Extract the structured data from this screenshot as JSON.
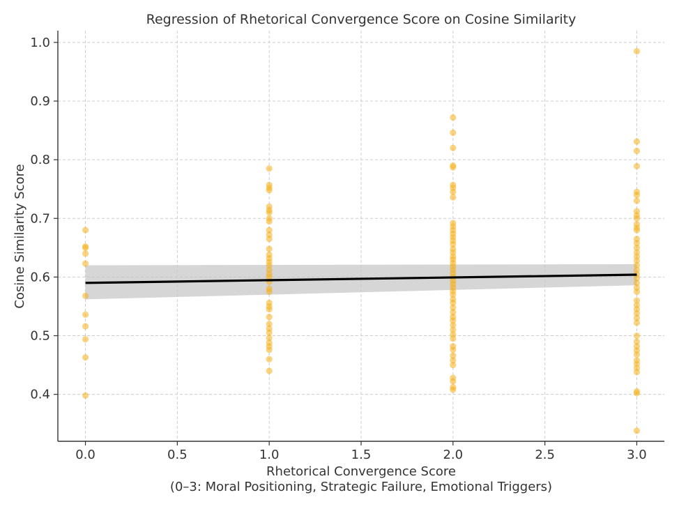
{
  "chart_data": {
    "type": "scatter",
    "title": "Regression of Rhetorical Convergence Score on Cosine Similarity",
    "xlabel": "Rhetorical Convergence Score",
    "xlabel_sub": "(0–3: Moral Positioning, Strategic Failure, Emotional Triggers)",
    "ylabel": "Cosine Similarity Score",
    "xlim": [
      -0.15,
      3.15
    ],
    "ylim": [
      0.32,
      1.02
    ],
    "x_ticks": [
      0.0,
      0.5,
      1.0,
      1.5,
      2.0,
      2.5,
      3.0
    ],
    "x_tick_labels": [
      "0.0",
      "0.5",
      "1.0",
      "1.5",
      "2.0",
      "2.5",
      "3.0"
    ],
    "y_ticks": [
      0.4,
      0.5,
      0.6,
      0.7,
      0.8,
      0.9,
      1.0
    ],
    "y_tick_labels": [
      "0.4",
      "0.5",
      "0.6",
      "0.7",
      "0.8",
      "0.9",
      "1.0"
    ],
    "grid": true,
    "point_color": "#f5b01e",
    "points": [
      {
        "x": 0,
        "y": 0.68
      },
      {
        "x": 0,
        "y": 0.652
      },
      {
        "x": 0,
        "y": 0.65
      },
      {
        "x": 0,
        "y": 0.64
      },
      {
        "x": 0,
        "y": 0.623
      },
      {
        "x": 0,
        "y": 0.568
      },
      {
        "x": 0,
        "y": 0.536
      },
      {
        "x": 0,
        "y": 0.516
      },
      {
        "x": 0,
        "y": 0.494
      },
      {
        "x": 0,
        "y": 0.463
      },
      {
        "x": 0,
        "y": 0.398
      },
      {
        "x": 1,
        "y": 0.785
      },
      {
        "x": 1,
        "y": 0.757
      },
      {
        "x": 1,
        "y": 0.752
      },
      {
        "x": 1,
        "y": 0.748
      },
      {
        "x": 1,
        "y": 0.72
      },
      {
        "x": 1,
        "y": 0.714
      },
      {
        "x": 1,
        "y": 0.71
      },
      {
        "x": 1,
        "y": 0.7
      },
      {
        "x": 1,
        "y": 0.695
      },
      {
        "x": 1,
        "y": 0.68
      },
      {
        "x": 1,
        "y": 0.672
      },
      {
        "x": 1,
        "y": 0.665
      },
      {
        "x": 1,
        "y": 0.648
      },
      {
        "x": 1,
        "y": 0.638
      },
      {
        "x": 1,
        "y": 0.632
      },
      {
        "x": 1,
        "y": 0.626
      },
      {
        "x": 1,
        "y": 0.62
      },
      {
        "x": 1,
        "y": 0.612
      },
      {
        "x": 1,
        "y": 0.605
      },
      {
        "x": 1,
        "y": 0.6
      },
      {
        "x": 1,
        "y": 0.592
      },
      {
        "x": 1,
        "y": 0.58
      },
      {
        "x": 1,
        "y": 0.575
      },
      {
        "x": 1,
        "y": 0.556
      },
      {
        "x": 1,
        "y": 0.55
      },
      {
        "x": 1,
        "y": 0.545
      },
      {
        "x": 1,
        "y": 0.532
      },
      {
        "x": 1,
        "y": 0.52
      },
      {
        "x": 1,
        "y": 0.512
      },
      {
        "x": 1,
        "y": 0.505
      },
      {
        "x": 1,
        "y": 0.496
      },
      {
        "x": 1,
        "y": 0.488
      },
      {
        "x": 1,
        "y": 0.482
      },
      {
        "x": 1,
        "y": 0.476
      },
      {
        "x": 1,
        "y": 0.46
      },
      {
        "x": 1,
        "y": 0.44
      },
      {
        "x": 2,
        "y": 0.872
      },
      {
        "x": 2,
        "y": 0.846
      },
      {
        "x": 2,
        "y": 0.82
      },
      {
        "x": 2,
        "y": 0.79
      },
      {
        "x": 2,
        "y": 0.787
      },
      {
        "x": 2,
        "y": 0.757
      },
      {
        "x": 2,
        "y": 0.752
      },
      {
        "x": 2,
        "y": 0.745
      },
      {
        "x": 2,
        "y": 0.736
      },
      {
        "x": 2,
        "y": 0.692
      },
      {
        "x": 2,
        "y": 0.686
      },
      {
        "x": 2,
        "y": 0.68
      },
      {
        "x": 2,
        "y": 0.674
      },
      {
        "x": 2,
        "y": 0.668
      },
      {
        "x": 2,
        "y": 0.662
      },
      {
        "x": 2,
        "y": 0.656
      },
      {
        "x": 2,
        "y": 0.648
      },
      {
        "x": 2,
        "y": 0.642
      },
      {
        "x": 2,
        "y": 0.635
      },
      {
        "x": 2,
        "y": 0.63
      },
      {
        "x": 2,
        "y": 0.624
      },
      {
        "x": 2,
        "y": 0.618
      },
      {
        "x": 2,
        "y": 0.612
      },
      {
        "x": 2,
        "y": 0.606
      },
      {
        "x": 2,
        "y": 0.6
      },
      {
        "x": 2,
        "y": 0.594
      },
      {
        "x": 2,
        "y": 0.588
      },
      {
        "x": 2,
        "y": 0.582
      },
      {
        "x": 2,
        "y": 0.576
      },
      {
        "x": 2,
        "y": 0.57
      },
      {
        "x": 2,
        "y": 0.562
      },
      {
        "x": 2,
        "y": 0.556
      },
      {
        "x": 2,
        "y": 0.548
      },
      {
        "x": 2,
        "y": 0.54
      },
      {
        "x": 2,
        "y": 0.532
      },
      {
        "x": 2,
        "y": 0.526
      },
      {
        "x": 2,
        "y": 0.518
      },
      {
        "x": 2,
        "y": 0.51
      },
      {
        "x": 2,
        "y": 0.502
      },
      {
        "x": 2,
        "y": 0.495
      },
      {
        "x": 2,
        "y": 0.482
      },
      {
        "x": 2,
        "y": 0.476
      },
      {
        "x": 2,
        "y": 0.466
      },
      {
        "x": 2,
        "y": 0.458
      },
      {
        "x": 2,
        "y": 0.45
      },
      {
        "x": 2,
        "y": 0.428
      },
      {
        "x": 2,
        "y": 0.422
      },
      {
        "x": 2,
        "y": 0.412
      },
      {
        "x": 2,
        "y": 0.408
      },
      {
        "x": 3,
        "y": 0.985
      },
      {
        "x": 3,
        "y": 0.831
      },
      {
        "x": 3,
        "y": 0.815
      },
      {
        "x": 3,
        "y": 0.789
      },
      {
        "x": 3,
        "y": 0.745
      },
      {
        "x": 3,
        "y": 0.74
      },
      {
        "x": 3,
        "y": 0.73
      },
      {
        "x": 3,
        "y": 0.712
      },
      {
        "x": 3,
        "y": 0.705
      },
      {
        "x": 3,
        "y": 0.7
      },
      {
        "x": 3,
        "y": 0.69
      },
      {
        "x": 3,
        "y": 0.684
      },
      {
        "x": 3,
        "y": 0.68
      },
      {
        "x": 3,
        "y": 0.665
      },
      {
        "x": 3,
        "y": 0.658
      },
      {
        "x": 3,
        "y": 0.65
      },
      {
        "x": 3,
        "y": 0.642
      },
      {
        "x": 3,
        "y": 0.635
      },
      {
        "x": 3,
        "y": 0.628
      },
      {
        "x": 3,
        "y": 0.62
      },
      {
        "x": 3,
        "y": 0.612
      },
      {
        "x": 3,
        "y": 0.605
      },
      {
        "x": 3,
        "y": 0.598
      },
      {
        "x": 3,
        "y": 0.59
      },
      {
        "x": 3,
        "y": 0.582
      },
      {
        "x": 3,
        "y": 0.575
      },
      {
        "x": 3,
        "y": 0.56
      },
      {
        "x": 3,
        "y": 0.552
      },
      {
        "x": 3,
        "y": 0.545
      },
      {
        "x": 3,
        "y": 0.538
      },
      {
        "x": 3,
        "y": 0.53
      },
      {
        "x": 3,
        "y": 0.522
      },
      {
        "x": 3,
        "y": 0.5
      },
      {
        "x": 3,
        "y": 0.49
      },
      {
        "x": 3,
        "y": 0.482
      },
      {
        "x": 3,
        "y": 0.475
      },
      {
        "x": 3,
        "y": 0.468
      },
      {
        "x": 3,
        "y": 0.458
      },
      {
        "x": 3,
        "y": 0.452
      },
      {
        "x": 3,
        "y": 0.445
      },
      {
        "x": 3,
        "y": 0.438
      },
      {
        "x": 3,
        "y": 0.405
      },
      {
        "x": 3,
        "y": 0.402
      },
      {
        "x": 3,
        "y": 0.338
      }
    ],
    "regression": {
      "x": [
        0,
        3
      ],
      "y": [
        0.59,
        0.604
      ],
      "ci_lower": [
        0.562,
        0.586
      ],
      "ci_upper": [
        0.62,
        0.622
      ],
      "line_color": "#000000",
      "band_color": "#c8c8c8"
    }
  }
}
